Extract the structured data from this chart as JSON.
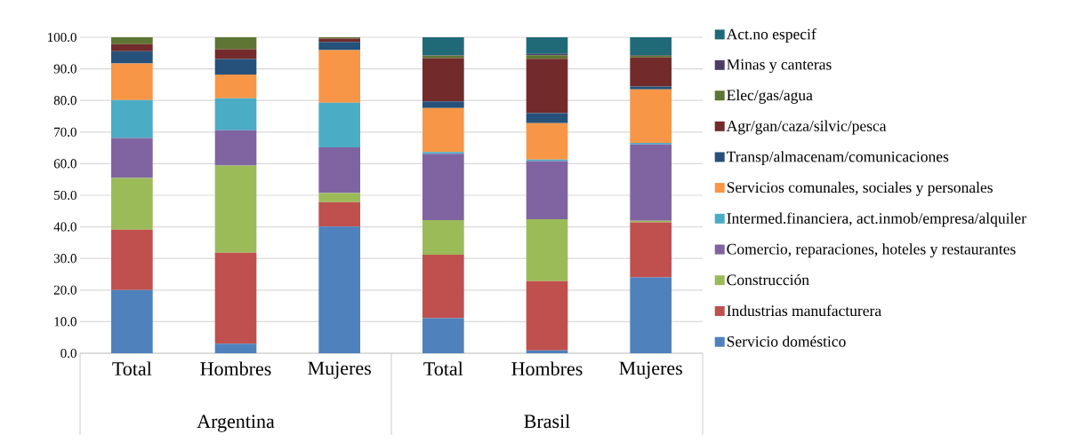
{
  "chart_data": {
    "type": "bar",
    "stacked": true,
    "grid": "y",
    "legend": "right",
    "categories": [
      "Total",
      "Hombres",
      "Mujeres",
      "Total",
      "Hombres",
      "Mujeres"
    ],
    "annotations": [
      "Argentina",
      "Brasil"
    ],
    "ylim": [
      0,
      100
    ],
    "yticks": [
      {
        "value": 0,
        "label": "0.0"
      },
      {
        "value": 10,
        "label": "10.0"
      },
      {
        "value": 20,
        "label": "20.0"
      },
      {
        "value": 30,
        "label": "30.0"
      },
      {
        "value": 40,
        "label": "40.0"
      },
      {
        "value": 50,
        "label": "50.0"
      },
      {
        "value": 60,
        "label": "60.0"
      },
      {
        "value": 70,
        "label": "70.0"
      },
      {
        "value": 80,
        "label": "80.0"
      },
      {
        "value": 90,
        "label": "90.0"
      },
      {
        "value": 100,
        "label": "100.0"
      }
    ],
    "series": [
      {
        "name": "Servicio doméstico",
        "color": "#4f81bd",
        "values": [
          20.0,
          3.0,
          40.1,
          11.1,
          0.9,
          24.0
        ]
      },
      {
        "name": "Industrias manufacturera",
        "color": "#c0504d",
        "values": [
          19.1,
          28.8,
          7.7,
          20.1,
          21.9,
          17.4
        ]
      },
      {
        "name": "Construcción",
        "color": "#9bbb59",
        "values": [
          16.4,
          27.6,
          2.9,
          10.9,
          19.6,
          0.5
        ]
      },
      {
        "name": "Comercio, reparaciones, hoteles y restaurantes",
        "color": "#8064a2",
        "values": [
          12.6,
          11.2,
          14.5,
          21.0,
          18.4,
          24.2
        ]
      },
      {
        "name": "Intermed.financiera, act.inmob/empresa/alquiler",
        "color": "#4bacc6",
        "values": [
          12.0,
          10.1,
          14.1,
          0.6,
          0.5,
          0.5
        ]
      },
      {
        "name": "Servicios comunales, sociales y personales",
        "color": "#f79646",
        "values": [
          11.6,
          7.5,
          16.6,
          13.9,
          11.5,
          16.9
        ]
      },
      {
        "name": "Transp/almacenam/comunicaciones",
        "color": "#26517a",
        "values": [
          3.9,
          4.9,
          2.6,
          2.1,
          3.2,
          0.9
        ]
      },
      {
        "name": "Agr/gan/caza/silvic/pesca",
        "color": "#722a2b",
        "values": [
          2.2,
          3.1,
          1.1,
          13.7,
          17.2,
          9.2
        ]
      },
      {
        "name": "Elec/gas/agua",
        "color": "#5f7533",
        "values": [
          2.2,
          3.8,
          0.4,
          0.8,
          1.1,
          0.6
        ]
      },
      {
        "name": "Minas y canteras",
        "color": "#4c3d67",
        "values": [
          0,
          0,
          0,
          0.1,
          0.4,
          0.2
        ]
      },
      {
        "name": "Act.no especif",
        "color": "#206a78",
        "values": [
          0,
          0,
          0,
          5.7,
          5.3,
          5.6
        ]
      }
    ]
  }
}
